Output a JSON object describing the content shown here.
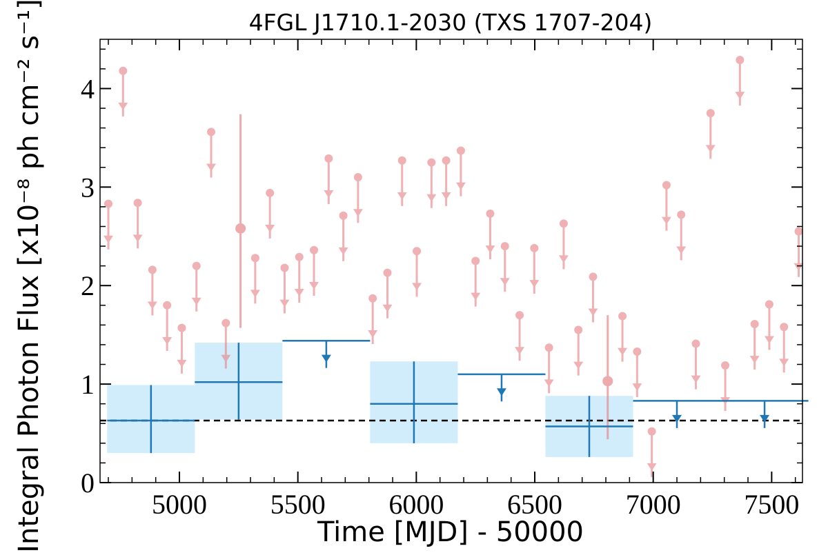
{
  "chart_data": {
    "type": "scatter",
    "title": "4FGL J1710.1-2030 (TXS 1707-204)",
    "xlabel": "Time [MJD] - 50000",
    "ylabel": "Integral Photon Flux [x10⁻⁸ ph cm⁻² s⁻¹]",
    "xlim": [
      4665,
      7630
    ],
    "ylim": [
      0,
      4.5
    ],
    "x_ticks": [
      5000,
      5500,
      6000,
      6500,
      7000,
      7500
    ],
    "y_ticks": [
      0,
      1,
      2,
      3,
      4
    ],
    "grid": false,
    "colors": {
      "short_bins": "#e8888c",
      "long_bins": "#1f77b4",
      "long_bin_band": "#d1ecfb",
      "mean_line": "#000000"
    },
    "series": [
      {
        "kind": "upper_limits",
        "style": "short-bins",
        "points": [
          {
            "x": 4700,
            "y": 2.83
          },
          {
            "x": 4762,
            "y": 4.18
          },
          {
            "x": 4824,
            "y": 2.84
          },
          {
            "x": 4886,
            "y": 2.16
          },
          {
            "x": 4948,
            "y": 1.8
          },
          {
            "x": 5010,
            "y": 1.57
          },
          {
            "x": 5072,
            "y": 2.2
          },
          {
            "x": 5134,
            "y": 3.56
          },
          {
            "x": 5196,
            "y": 1.62
          },
          {
            "x": 5320,
            "y": 2.28
          },
          {
            "x": 5382,
            "y": 2.94
          },
          {
            "x": 5444,
            "y": 2.18
          },
          {
            "x": 5506,
            "y": 2.29
          },
          {
            "x": 5568,
            "y": 2.36
          },
          {
            "x": 5630,
            "y": 3.29
          },
          {
            "x": 5692,
            "y": 2.71
          },
          {
            "x": 5754,
            "y": 3.1
          },
          {
            "x": 5816,
            "y": 1.87
          },
          {
            "x": 5878,
            "y": 2.13
          },
          {
            "x": 5940,
            "y": 3.27
          },
          {
            "x": 6002,
            "y": 2.35
          },
          {
            "x": 6064,
            "y": 3.25
          },
          {
            "x": 6126,
            "y": 3.27
          },
          {
            "x": 6188,
            "y": 3.37
          },
          {
            "x": 6250,
            "y": 2.25
          },
          {
            "x": 6312,
            "y": 2.73
          },
          {
            "x": 6374,
            "y": 2.4
          },
          {
            "x": 6436,
            "y": 1.7
          },
          {
            "x": 6498,
            "y": 2.38
          },
          {
            "x": 6560,
            "y": 1.37
          },
          {
            "x": 6622,
            "y": 2.63
          },
          {
            "x": 6684,
            "y": 1.55
          },
          {
            "x": 6746,
            "y": 2.09
          },
          {
            "x": 6870,
            "y": 1.69
          },
          {
            "x": 6932,
            "y": 1.33
          },
          {
            "x": 6994,
            "y": 0.52
          },
          {
            "x": 7056,
            "y": 3.02
          },
          {
            "x": 7118,
            "y": 2.72
          },
          {
            "x": 7180,
            "y": 1.41
          },
          {
            "x": 7242,
            "y": 3.75
          },
          {
            "x": 7304,
            "y": 1.19
          },
          {
            "x": 7366,
            "y": 4.29
          },
          {
            "x": 7428,
            "y": 1.61
          },
          {
            "x": 7490,
            "y": 1.81
          },
          {
            "x": 7552,
            "y": 1.58
          },
          {
            "x": 7614,
            "y": 2.55
          }
        ]
      },
      {
        "kind": "detections",
        "style": "short-bins",
        "points": [
          {
            "x": 5258,
            "y": 2.58,
            "y_low": 1.57,
            "y_high": 3.74
          },
          {
            "x": 6808,
            "y": 1.03,
            "y_low": 0.44,
            "y_high": 1.7
          }
        ]
      },
      {
        "kind": "binned_detections",
        "style": "long-bins",
        "points": [
          {
            "x": 4880,
            "x_low": 4695,
            "x_high": 5065,
            "y": 0.63,
            "y_low": 0.3,
            "y_high": 0.99
          },
          {
            "x": 5250,
            "x_low": 5065,
            "x_high": 5435,
            "y": 1.02,
            "y_low": 0.64,
            "y_high": 1.42
          },
          {
            "x": 5990,
            "x_low": 5805,
            "x_high": 6175,
            "y": 0.8,
            "y_low": 0.4,
            "y_high": 1.23
          },
          {
            "x": 6730,
            "x_low": 6545,
            "x_high": 6915,
            "y": 0.57,
            "y_low": 0.26,
            "y_high": 0.88
          }
        ]
      },
      {
        "kind": "binned_upper_limits",
        "style": "long-bins",
        "points": [
          {
            "x": 5620,
            "x_low": 5435,
            "x_high": 5805,
            "y": 1.44
          },
          {
            "x": 6360,
            "x_low": 6175,
            "x_high": 6545,
            "y": 1.1
          },
          {
            "x": 7100,
            "x_low": 6915,
            "x_high": 7285,
            "y": 0.83
          },
          {
            "x": 7470,
            "x_low": 7285,
            "x_high": 7655,
            "y": 0.83
          }
        ]
      }
    ],
    "reference_lines": [
      {
        "orientation": "horizontal",
        "y": 0.63,
        "style": "dashed"
      }
    ]
  }
}
